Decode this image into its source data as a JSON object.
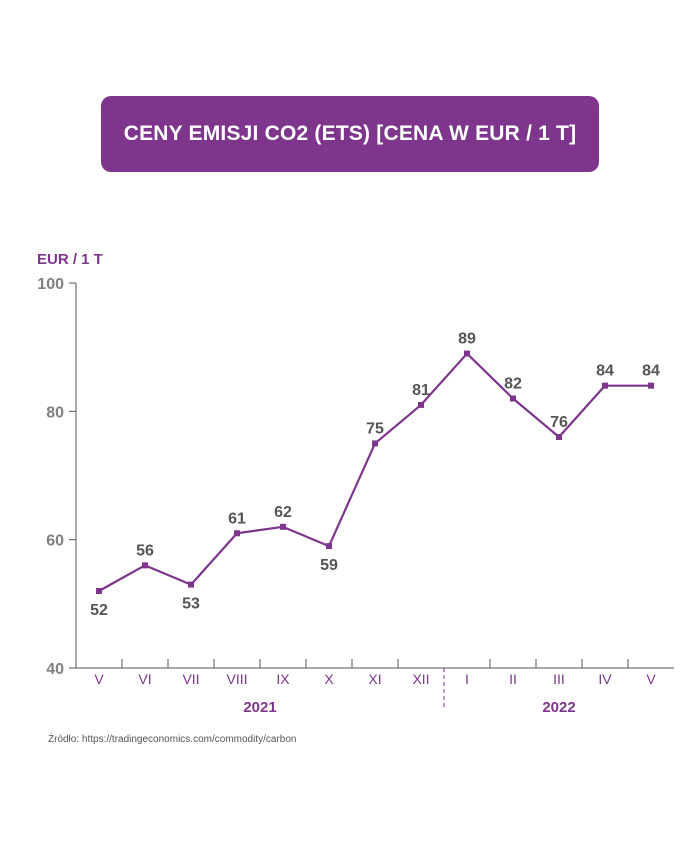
{
  "title": "CENY EMISJI CO2 (ETS) [CENA W EUR / 1 T]",
  "source": "Źródło: https://tradingeconomics.com/commodity/carbon",
  "colors": {
    "title_bg": "#7d368c",
    "line": "#7d368c",
    "ylabel": "#7d368c",
    "tick_labels": "#808080",
    "data_labels": "#555555",
    "axis": "#555555"
  },
  "chart_data": {
    "type": "line",
    "ylabel": "EUR / 1 T",
    "ylim": [
      40,
      100
    ],
    "yticks": [
      40,
      60,
      80,
      100
    ],
    "categories": [
      "V",
      "VI",
      "VII",
      "VIII",
      "IX",
      "X",
      "XI",
      "XII",
      "I",
      "II",
      "III",
      "IV",
      "V"
    ],
    "values": [
      52,
      56,
      53,
      61,
      62,
      59,
      75,
      81,
      89,
      82,
      76,
      84,
      84
    ],
    "label_positions": [
      "below",
      "above",
      "below",
      "above",
      "above",
      "below",
      "above",
      "above",
      "above",
      "above",
      "above",
      "above",
      "above"
    ],
    "year_groups": [
      {
        "label": "2021",
        "start": 0,
        "end": 7
      },
      {
        "label": "2022",
        "start": 8,
        "end": 12
      }
    ],
    "grid": false,
    "legend": "none"
  }
}
